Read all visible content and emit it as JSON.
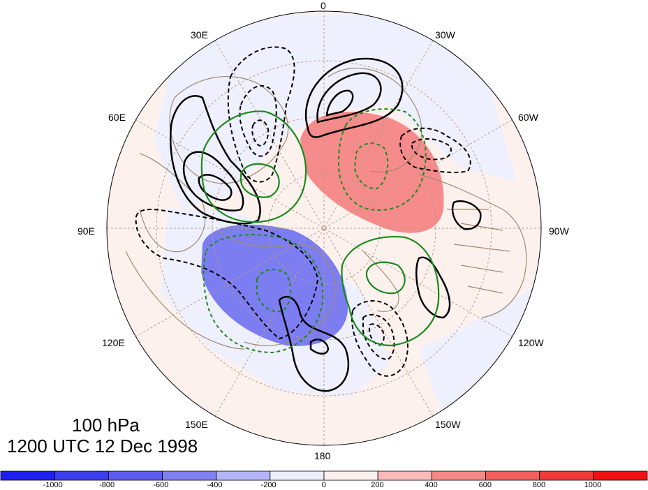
{
  "title": {
    "level": "100 hPa",
    "time": "1200 UTC 12 Dec 1998"
  },
  "longitude_labels": {
    "lon_0": "0",
    "lon_30w": "30W",
    "lon_60w": "60W",
    "lon_90w": "90W",
    "lon_120w": "120W",
    "lon_150w": "150W",
    "lon_180": "180",
    "lon_150e": "150E",
    "lon_120e": "120E",
    "lon_90e": "90E",
    "lon_60e": "60E",
    "lon_30e": "30E"
  },
  "colorbar": {
    "ticks": [
      "-1000",
      "-800",
      "-600",
      "-400",
      "-200",
      "0",
      "200",
      "400",
      "600",
      "800",
      "1000"
    ],
    "colors": [
      "#1f1ff2",
      "#3c3cf0",
      "#5a5af0",
      "#8080f2",
      "#b4b4f8",
      "#eeeefe",
      "#fff0ee",
      "#f9baba",
      "#f68888",
      "#f35d5d",
      "#f03838",
      "#f21010"
    ]
  },
  "map_colors": {
    "background_positive": "#fdf1ee",
    "background_negative": "#eff0fe",
    "negative_anomaly": "#7d7df2",
    "positive_anomaly": "#f68b8b",
    "coastline": "#a08a72",
    "graticule": "#b79c82",
    "contour_black": "#000000",
    "contour_green": "#1a8a1a"
  }
}
